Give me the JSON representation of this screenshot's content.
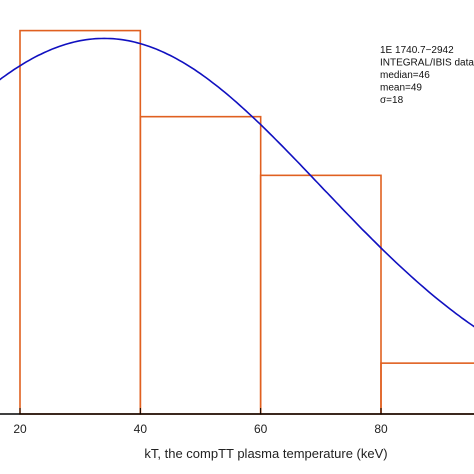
{
  "chart_data": {
    "type": "bar",
    "xlabel": "kT, the compTT plasma temperature (keV)",
    "xticks": [
      20,
      40,
      60,
      80
    ],
    "xlim": [
      14,
      100
    ],
    "ylim": [
      0,
      1.0
    ],
    "histogram": {
      "bins": [
        {
          "x0": 20,
          "x1": 40,
          "value": 0.98
        },
        {
          "x0": 40,
          "x1": 60,
          "value": 0.76
        },
        {
          "x0": 60,
          "x1": 80,
          "value": 0.61
        },
        {
          "x0": 80,
          "x1": 100,
          "value": 0.13
        }
      ],
      "color": "#e06020"
    },
    "curve": {
      "type": "gaussian",
      "peak_x": 34,
      "peak_y": 0.96,
      "sigma": 36,
      "color": "#1010c0"
    },
    "annotations": [
      "1E 1740.7−2942",
      "INTEGRAL/IBIS data",
      "median=46",
      "mean=49",
      "σ=18"
    ]
  }
}
